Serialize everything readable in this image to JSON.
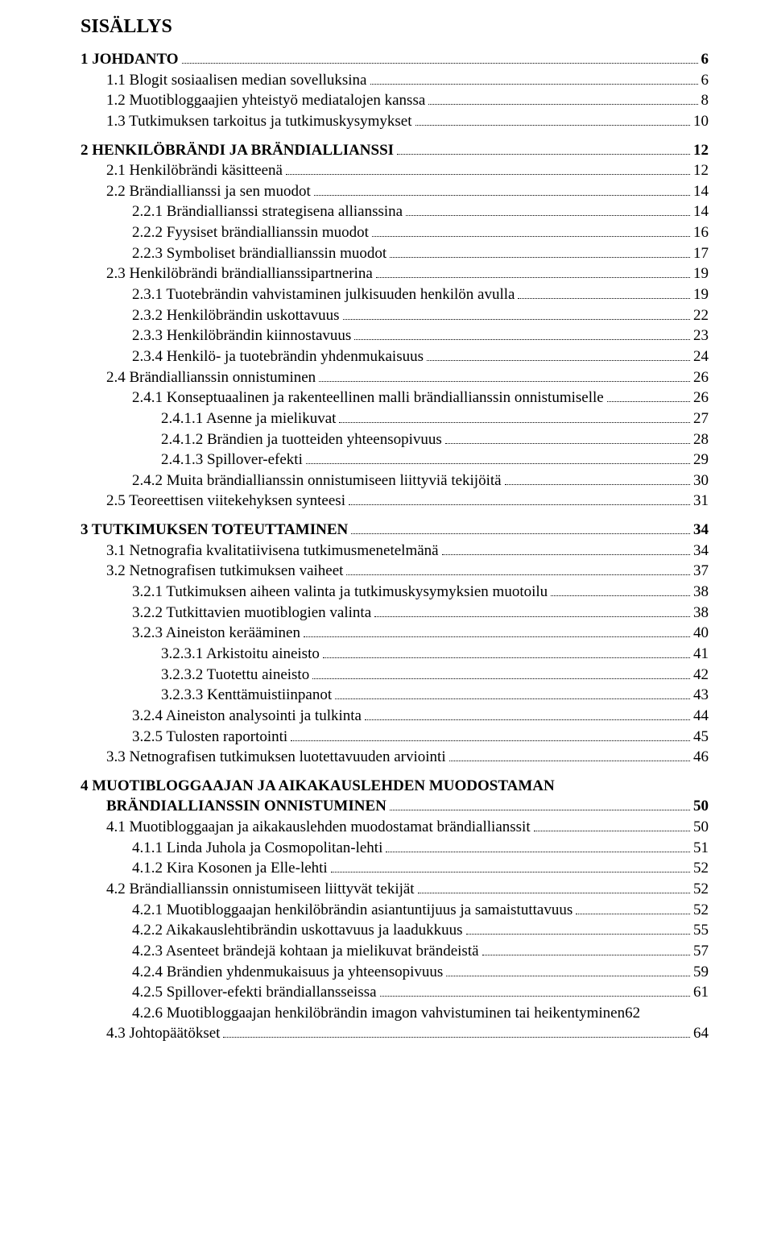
{
  "doc": {
    "title": "SISÄLLYS",
    "text_color": "#000000",
    "background_color": "#ffffff",
    "base_font_family": "Times New Roman",
    "title_fontsize_pt": 18,
    "body_fontsize_pt": 14,
    "leader_style": "dotted",
    "entries": [
      {
        "label": "1 JOHDANTO",
        "page": "6",
        "bold": true,
        "indent": 0,
        "gap_before": false
      },
      {
        "label": "1.1 Blogit sosiaalisen median sovelluksina",
        "page": "6",
        "bold": false,
        "indent": 1,
        "gap_before": false
      },
      {
        "label": "1.2 Muotibloggaajien yhteistyö mediatalojen kanssa",
        "page": "8",
        "bold": false,
        "indent": 1,
        "gap_before": false
      },
      {
        "label": "1.3 Tutkimuksen tarkoitus ja tutkimuskysymykset",
        "page": "10",
        "bold": false,
        "indent": 1,
        "gap_before": false
      },
      {
        "label": "2 HENKILÖBRÄNDI JA BRÄNDIALLIANSSI",
        "page": "12",
        "bold": true,
        "indent": 0,
        "gap_before": true
      },
      {
        "label": "2.1 Henkilöbrändi käsitteenä",
        "page": "12",
        "bold": false,
        "indent": 1,
        "gap_before": false
      },
      {
        "label": "2.2 Brändiallianssi ja sen muodot",
        "page": "14",
        "bold": false,
        "indent": 1,
        "gap_before": false
      },
      {
        "label": "2.2.1 Brändiallianssi strategisena allianssina",
        "page": "14",
        "bold": false,
        "indent": 2,
        "gap_before": false
      },
      {
        "label": "2.2.2 Fyysiset brändiallianssin muodot",
        "page": "16",
        "bold": false,
        "indent": 2,
        "gap_before": false
      },
      {
        "label": "2.2.3 Symboliset brändiallianssin muodot",
        "page": "17",
        "bold": false,
        "indent": 2,
        "gap_before": false
      },
      {
        "label": "2.3 Henkilöbrändi brändiallianssipartnerina",
        "page": "19",
        "bold": false,
        "indent": 1,
        "gap_before": false
      },
      {
        "label": "2.3.1 Tuotebrändin vahvistaminen julkisuuden henkilön avulla",
        "page": "19",
        "bold": false,
        "indent": 2,
        "gap_before": false
      },
      {
        "label": "2.3.2 Henkilöbrändin uskottavuus",
        "page": "22",
        "bold": false,
        "indent": 2,
        "gap_before": false
      },
      {
        "label": "2.3.3 Henkilöbrändin kiinnostavuus",
        "page": "23",
        "bold": false,
        "indent": 2,
        "gap_before": false
      },
      {
        "label": "2.3.4 Henkilö- ja tuotebrändin yhdenmukaisuus",
        "page": "24",
        "bold": false,
        "indent": 2,
        "gap_before": false
      },
      {
        "label": "2.4 Brändiallianssin onnistuminen",
        "page": "26",
        "bold": false,
        "indent": 1,
        "gap_before": false
      },
      {
        "label": "2.4.1 Konseptuaalinen ja rakenteellinen malli brändiallianssin onnistumiselle",
        "page": "26",
        "bold": false,
        "indent": 2,
        "gap_before": false
      },
      {
        "label": "2.4.1.1 Asenne ja mielikuvat",
        "page": "27",
        "bold": false,
        "indent": 3,
        "gap_before": false
      },
      {
        "label": "2.4.1.2 Brändien ja tuotteiden yhteensopivuus",
        "page": "28",
        "bold": false,
        "indent": 3,
        "gap_before": false
      },
      {
        "label": "2.4.1.3 Spillover-efekti",
        "page": "29",
        "bold": false,
        "indent": 3,
        "gap_before": false
      },
      {
        "label": "2.4.2 Muita brändiallianssin onnistumiseen liittyviä tekijöitä",
        "page": "30",
        "bold": false,
        "indent": 2,
        "gap_before": false
      },
      {
        "label": "2.5 Teoreettisen viitekehyksen synteesi",
        "page": "31",
        "bold": false,
        "indent": 1,
        "gap_before": false
      },
      {
        "label": "3 TUTKIMUKSEN TOTEUTTAMINEN",
        "page": "34",
        "bold": true,
        "indent": 0,
        "gap_before": true
      },
      {
        "label": "3.1 Netnografia kvalitatiivisena tutkimusmenetelmänä",
        "page": "34",
        "bold": false,
        "indent": 1,
        "gap_before": false
      },
      {
        "label": "3.2 Netnografisen tutkimuksen vaiheet",
        "page": "37",
        "bold": false,
        "indent": 1,
        "gap_before": false
      },
      {
        "label": "3.2.1 Tutkimuksen aiheen valinta ja tutkimuskysymyksien muotoilu",
        "page": "38",
        "bold": false,
        "indent": 2,
        "gap_before": false
      },
      {
        "label": "3.2.2 Tutkittavien muotiblogien valinta",
        "page": "38",
        "bold": false,
        "indent": 2,
        "gap_before": false
      },
      {
        "label": "3.2.3 Aineiston kerääminen",
        "page": "40",
        "bold": false,
        "indent": 2,
        "gap_before": false
      },
      {
        "label": "3.2.3.1 Arkistoitu aineisto",
        "page": "41",
        "bold": false,
        "indent": 3,
        "gap_before": false
      },
      {
        "label": "3.2.3.2 Tuotettu aineisto",
        "page": "42",
        "bold": false,
        "indent": 3,
        "gap_before": false
      },
      {
        "label": "3.2.3.3 Kenttämuistiinpanot",
        "page": "43",
        "bold": false,
        "indent": 3,
        "gap_before": false
      },
      {
        "label": "3.2.4 Aineiston analysointi ja tulkinta",
        "page": "44",
        "bold": false,
        "indent": 2,
        "gap_before": false
      },
      {
        "label": "3.2.5 Tulosten raportointi",
        "page": "45",
        "bold": false,
        "indent": 2,
        "gap_before": false
      },
      {
        "label": "3.3 Netnografisen tutkimuksen luotettavuuden arviointi",
        "page": "46",
        "bold": false,
        "indent": 1,
        "gap_before": false
      },
      {
        "label": "4 MUOTIBLOGGAAJAN JA AIKAKAUSLEHDEN MUODOSTAMAN BRÄNDIALLIANSSIN ONNISTUMINEN",
        "page": "50",
        "bold": true,
        "indent": 0,
        "gap_before": true,
        "wrap_hang": true
      },
      {
        "label": "4.1 Muotibloggaajan ja aikakauslehden muodostamat brändiallianssit",
        "page": "50",
        "bold": false,
        "indent": 1,
        "gap_before": false
      },
      {
        "label": "4.1.1 Linda Juhola ja Cosmopolitan-lehti",
        "page": "51",
        "bold": false,
        "indent": 2,
        "gap_before": false
      },
      {
        "label": "4.1.2 Kira Kosonen ja Elle-lehti",
        "page": "52",
        "bold": false,
        "indent": 2,
        "gap_before": false
      },
      {
        "label": "4.2 Brändiallianssin onnistumiseen liittyvät tekijät",
        "page": "52",
        "bold": false,
        "indent": 1,
        "gap_before": false
      },
      {
        "label": "4.2.1 Muotibloggaajan henkilöbrändin asiantuntijuus ja samaistuttavuus",
        "page": "52",
        "bold": false,
        "indent": 2,
        "gap_before": false
      },
      {
        "label": "4.2.2 Aikakauslehtibrändin uskottavuus ja laadukkuus",
        "page": "55",
        "bold": false,
        "indent": 2,
        "gap_before": false
      },
      {
        "label": "4.2.3 Asenteet brändejä kohtaan ja mielikuvat brändeistä",
        "page": "57",
        "bold": false,
        "indent": 2,
        "gap_before": false
      },
      {
        "label": "4.2.4 Brändien yhdenmukaisuus ja yhteensopivuus",
        "page": "59",
        "bold": false,
        "indent": 2,
        "gap_before": false
      },
      {
        "label": "4.2.5 Spillover-efekti brändiallansseissa",
        "page": "61",
        "bold": false,
        "indent": 2,
        "gap_before": false
      },
      {
        "label": "4.2.6 Muotibloggaajan henkilöbrändin imagon vahvistuminen tai heikentyminen",
        "page": "62",
        "bold": false,
        "indent": 2,
        "gap_before": false,
        "page_immediate": true
      },
      {
        "label": "4.3 Johtopäätökset",
        "page": "64",
        "bold": false,
        "indent": 1,
        "gap_before": false
      }
    ]
  }
}
